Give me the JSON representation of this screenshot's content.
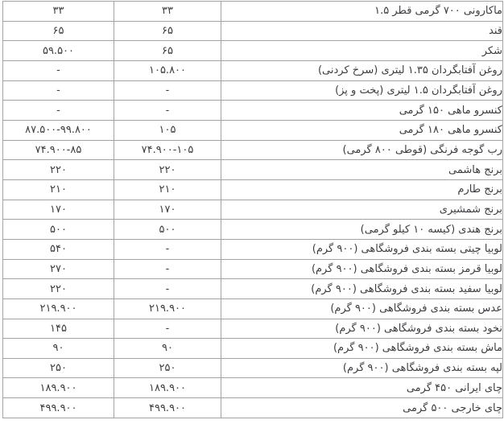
{
  "colors": {
    "background": "#ffffff",
    "border": "#a3a3a3",
    "text": "#3e3e42"
  },
  "table": {
    "direction": "rtl",
    "columns": [
      {
        "key": "value_left",
        "align": "center"
      },
      {
        "key": "value_middle",
        "align": "center"
      },
      {
        "key": "item",
        "align": "right"
      }
    ],
    "rows": [
      {
        "item": "ماکارونی ۷۰۰ گرمی قطر ۱.۵",
        "value_middle": "۳۳",
        "value_left": "۳۳"
      },
      {
        "item": "قند",
        "value_middle": "۶۵",
        "value_left": "۶۵"
      },
      {
        "item": "شکر",
        "value_middle": "۶۵",
        "value_left": "۵۹.۵۰۰"
      },
      {
        "item": "روغن آفتابگردان ۱.۳۵ لیتری (سرخ کردنی)",
        "value_middle": "۱۰۵.۸۰۰",
        "value_left": "-"
      },
      {
        "item": "روغن آفتابگردان ۱.۵ لیتری (پخت و پز)",
        "value_middle": "-",
        "value_left": "-"
      },
      {
        "item": "کنسرو ماهی ۱۵۰ گرمی",
        "value_middle": "-",
        "value_left": "-"
      },
      {
        "item": "کنسرو ماهی ۱۸۰ گرمی",
        "value_middle": "۱۰۵",
        "value_left": "۸۷.۵۰۰-۹۹.۸۰۰"
      },
      {
        "item": "رب گوجه فرنگی (قوطی ۸۰۰ گرمی)",
        "value_middle": "۷۴.۹۰۰-۱۰۵",
        "value_left": "۷۴.۹۰۰-۸۵"
      },
      {
        "item": "برنج هاشمی",
        "value_middle": "۲۲۰",
        "value_left": "۲۲۰"
      },
      {
        "item": "برنج طارم",
        "value_middle": "۲۱۰",
        "value_left": "۲۱۰"
      },
      {
        "item": "برنج شمشیری",
        "value_middle": "۱۷۰",
        "value_left": "۱۷۰"
      },
      {
        "item": "برنج هندی (کیسه ۱۰ کیلو گرمی)",
        "value_middle": "۵۰۰",
        "value_left": "۵۰۰"
      },
      {
        "item": "لوبیا چیتی بسته بندی فروشگاهی (۹۰۰ گرم)",
        "value_middle": "-",
        "value_left": "۵۴۰"
      },
      {
        "item": "لوبیا قرمز بسته بندی فروشگاهی (۹۰۰ گرم)",
        "value_middle": "-",
        "value_left": "۲۷۰"
      },
      {
        "item": "لوبیا سفید بسته بندی فروشگاهی (۹۰۰ گرم)",
        "value_middle": "-",
        "value_left": "۲۲۰"
      },
      {
        "item": "عدس بسته بندی فروشگاهی (۹۰۰ گرم)",
        "value_middle": "۲۱۹.۹۰۰",
        "value_left": "۲۱۹.۹۰۰"
      },
      {
        "item": "نخود بسته بندی فروشگاهی (۹۰۰ گرم)",
        "value_middle": "-",
        "value_left": "۱۴۵"
      },
      {
        "item": "ماش بسته بندی فروشگاهی (۹۰۰ گرم)",
        "value_middle": "۹۰",
        "value_left": "۹۰"
      },
      {
        "item": "لپه بسته بندی فروشگاهی (۹۰۰ گرم)",
        "value_middle": "۲۵۰",
        "value_left": "۲۵۰"
      },
      {
        "item": "چای ایرانی ۴۵۰ گرمی",
        "value_middle": "۱۸۹.۹۰۰",
        "value_left": "۱۸۹.۹۰۰"
      },
      {
        "item": "چای خارجی ۵۰۰ گرمی",
        "value_middle": "۴۹۹.۹۰۰",
        "value_left": "۴۹۹.۹۰۰"
      }
    ]
  }
}
